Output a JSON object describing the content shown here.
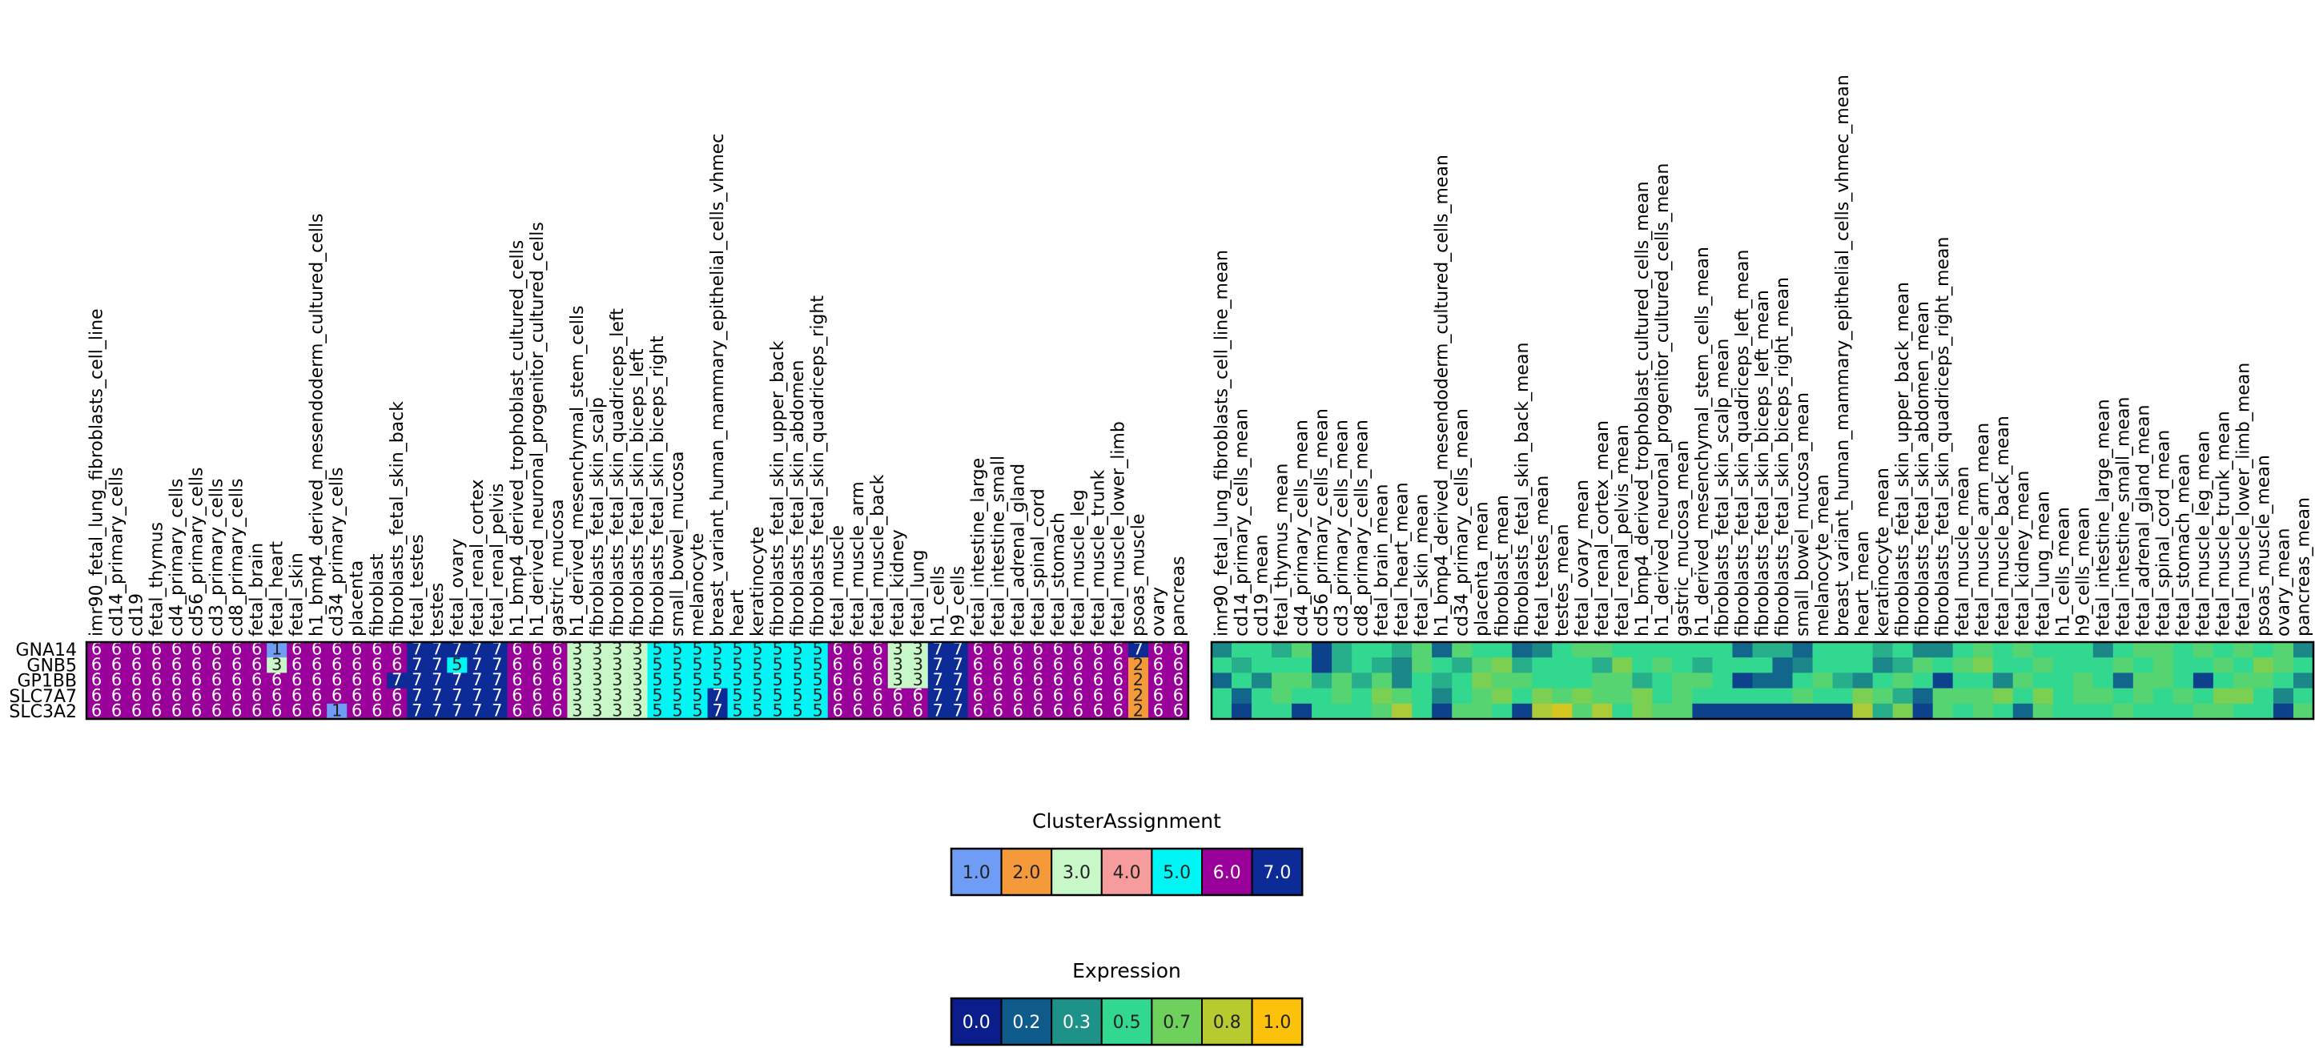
{
  "chart_data": [
    {
      "type": "heatmap",
      "name": "cluster-heatmap",
      "rows": [
        "GNA14",
        "GNB5",
        "GP1BB",
        "SLC7A7",
        "SLC3A2"
      ],
      "columns": [
        "imr90_fetal_lung_fibroblasts_cell_line",
        "cd14_primary_cells",
        "cd19",
        "fetal_thymus",
        "cd4_primary_cells",
        "cd56_primary_cells",
        "cd3_primary_cells",
        "cd8_primary_cells",
        "fetal_brain",
        "fetal_heart",
        "fetal_skin",
        "h1_bmp4_derived_mesendoderm_cultured_cells",
        "cd34_primary_cells",
        "placenta",
        "fibroblast",
        "fibroblasts_fetal_skin_back",
        "fetal_testes",
        "testes",
        "fetal_ovary",
        "fetal_renal_cortex",
        "fetal_renal_pelvis",
        "h1_bmp4_derived_trophoblast_cultured_cells",
        "h1_derived_neuronal_progenitor_cultured_cells",
        "gastric_mucosa",
        "h1_derived_mesenchymal_stem_cells",
        "fibroblasts_fetal_skin_scalp",
        "fibroblasts_fetal_skin_quadriceps_left",
        "fibroblasts_fetal_skin_biceps_left",
        "fibroblasts_fetal_skin_biceps_right",
        "small_bowel_mucosa",
        "melanocyte",
        "breast_variant_human_mammary_epithelial_cells_vhmec",
        "heart",
        "keratinocyte",
        "fibroblasts_fetal_skin_upper_back",
        "fibroblasts_fetal_skin_abdomen",
        "fibroblasts_fetal_skin_quadriceps_right",
        "fetal_muscle",
        "fetal_muscle_arm",
        "fetal_muscle_back",
        "fetal_kidney",
        "fetal_lung",
        "h1_cells",
        "h9_cells",
        "fetal_intestine_large",
        "fetal_intestine_small",
        "fetal_adrenal_gland",
        "fetal_spinal_cord",
        "fetal_stomach",
        "fetal_muscle_leg",
        "fetal_muscle_trunk",
        "fetal_muscle_lower_limb",
        "psoas_muscle",
        "ovary",
        "pancreas"
      ],
      "values": [
        [
          6,
          6,
          6,
          6,
          6,
          6,
          6,
          6,
          6,
          1,
          6,
          6,
          6,
          6,
          6,
          6,
          7,
          7,
          7,
          7,
          7,
          6,
          6,
          6,
          3,
          3,
          3,
          3,
          5,
          5,
          5,
          5,
          5,
          5,
          5,
          5,
          5,
          6,
          6,
          6,
          3,
          3,
          7,
          7,
          6,
          6,
          6,
          6,
          6,
          6,
          6,
          6,
          7,
          6,
          6
        ],
        [
          6,
          6,
          6,
          6,
          6,
          6,
          6,
          6,
          6,
          3,
          6,
          6,
          6,
          6,
          6,
          6,
          7,
          7,
          5,
          7,
          7,
          6,
          6,
          6,
          3,
          3,
          3,
          3,
          5,
          5,
          5,
          5,
          5,
          5,
          5,
          5,
          5,
          6,
          6,
          6,
          3,
          3,
          7,
          7,
          6,
          6,
          6,
          6,
          6,
          6,
          6,
          6,
          2,
          6,
          6
        ],
        [
          6,
          6,
          6,
          6,
          6,
          6,
          6,
          6,
          6,
          6,
          6,
          6,
          6,
          6,
          6,
          7,
          7,
          7,
          7,
          7,
          7,
          6,
          6,
          6,
          3,
          3,
          3,
          3,
          5,
          5,
          5,
          5,
          5,
          5,
          5,
          5,
          5,
          6,
          6,
          6,
          3,
          3,
          7,
          7,
          6,
          6,
          6,
          6,
          6,
          6,
          6,
          6,
          2,
          6,
          6
        ],
        [
          6,
          6,
          6,
          6,
          6,
          6,
          6,
          6,
          6,
          6,
          6,
          6,
          6,
          6,
          6,
          6,
          7,
          7,
          7,
          7,
          7,
          6,
          6,
          6,
          3,
          3,
          3,
          3,
          5,
          5,
          5,
          7,
          5,
          5,
          5,
          5,
          5,
          6,
          6,
          6,
          6,
          6,
          7,
          7,
          6,
          6,
          6,
          6,
          6,
          6,
          6,
          6,
          2,
          6,
          6
        ],
        [
          6,
          6,
          6,
          6,
          6,
          6,
          6,
          6,
          6,
          6,
          6,
          6,
          1,
          6,
          6,
          6,
          7,
          7,
          7,
          7,
          7,
          6,
          6,
          6,
          3,
          3,
          3,
          3,
          5,
          5,
          5,
          7,
          5,
          5,
          5,
          5,
          5,
          6,
          6,
          6,
          6,
          6,
          7,
          7,
          6,
          6,
          6,
          6,
          6,
          6,
          6,
          6,
          2,
          6,
          6
        ]
      ],
      "cluster_colors": {
        "1": "#6f9cf5",
        "2": "#f59a3b",
        "3": "#c8f7c8",
        "4": "#f79c9c",
        "5": "#00f5f5",
        "6": "#990099",
        "7": "#0d2b96"
      }
    },
    {
      "type": "heatmap",
      "name": "expression-heatmap",
      "rows": [
        "GNA14",
        "GNB5",
        "GP1BB",
        "SLC7A7",
        "SLC3A2"
      ],
      "columns": [
        "imr90_fetal_lung_fibroblasts_cell_line_mean",
        "cd14_primary_cells_mean",
        "cd19_mean",
        "fetal_thymus_mean",
        "cd4_primary_cells_mean",
        "cd56_primary_cells_mean",
        "cd3_primary_cells_mean",
        "cd8_primary_cells_mean",
        "fetal_brain_mean",
        "fetal_heart_mean",
        "fetal_skin_mean",
        "h1_bmp4_derived_mesendoderm_cultured_cells_mean",
        "cd34_primary_cells_mean",
        "placenta_mean",
        "fibroblast_mean",
        "fibroblasts_fetal_skin_back_mean",
        "fetal_testes_mean",
        "testes_mean",
        "fetal_ovary_mean",
        "fetal_renal_cortex_mean",
        "fetal_renal_pelvis_mean",
        "h1_bmp4_derived_trophoblast_cultured_cells_mean",
        "h1_derived_neuronal_progenitor_cultured_cells_mean",
        "gastric_mucosa_mean",
        "h1_derived_mesenchymal_stem_cells_mean",
        "fibroblasts_fetal_skin_scalp_mean",
        "fibroblasts_fetal_skin_quadriceps_left_mean",
        "fibroblasts_fetal_skin_biceps_left_mean",
        "fibroblasts_fetal_skin_biceps_right_mean",
        "small_bowel_mucosa_mean",
        "melanocyte_mean",
        "breast_variant_human_mammary_epithelial_cells_vhmec_mean",
        "heart_mean",
        "keratinocyte_mean",
        "fibroblasts_fetal_skin_upper_back_mean",
        "fibroblasts_fetal_skin_abdomen_mean",
        "fibroblasts_fetal_skin_quadriceps_right_mean",
        "fetal_muscle_mean",
        "fetal_muscle_arm_mean",
        "fetal_muscle_back_mean",
        "fetal_kidney_mean",
        "fetal_lung_mean",
        "h1_cells_mean",
        "h9_cells_mean",
        "fetal_intestine_large_mean",
        "fetal_intestine_small_mean",
        "fetal_adrenal_gland_mean",
        "fetal_spinal_cord_mean",
        "fetal_stomach_mean",
        "fetal_muscle_leg_mean",
        "fetal_muscle_trunk_mean",
        "fetal_muscle_lower_limb_mean",
        "psoas_muscle_mean",
        "ovary_mean",
        "pancreas_mean"
      ],
      "values": [
        [
          0.3,
          0.5,
          0.5,
          0.4,
          0.6,
          0.1,
          0.4,
          0.5,
          0.5,
          0.4,
          0.6,
          0.2,
          0.6,
          0.5,
          0.5,
          0.2,
          0.3,
          0.5,
          0.6,
          0.6,
          0.5,
          0.5,
          0.5,
          0.5,
          0.5,
          0.5,
          0.2,
          0.4,
          0.4,
          0.2,
          0.5,
          0.5,
          0.5,
          0.4,
          0.5,
          0.3,
          0.3,
          0.5,
          0.6,
          0.5,
          0.6,
          0.5,
          0.5,
          0.5,
          0.3,
          0.5,
          0.6,
          0.6,
          0.5,
          0.6,
          0.5,
          0.6,
          0.5,
          0.6,
          0.3
        ],
        [
          0.5,
          0.4,
          0.5,
          0.5,
          0.5,
          0.1,
          0.4,
          0.5,
          0.4,
          0.3,
          0.6,
          0.5,
          0.4,
          0.6,
          0.7,
          0.4,
          0.5,
          0.5,
          0.5,
          0.4,
          0.7,
          0.5,
          0.6,
          0.5,
          0.4,
          0.5,
          0.5,
          0.5,
          0.2,
          0.3,
          0.5,
          0.5,
          0.5,
          0.3,
          0.4,
          0.6,
          0.5,
          0.6,
          0.7,
          0.5,
          0.5,
          0.6,
          0.5,
          0.5,
          0.5,
          0.6,
          0.5,
          0.6,
          0.5,
          0.5,
          0.6,
          0.5,
          0.7,
          0.6,
          0.5
        ],
        [
          0.2,
          0.5,
          0.3,
          0.6,
          0.6,
          0.4,
          0.6,
          0.4,
          0.6,
          0.3,
          0.5,
          0.4,
          0.5,
          0.7,
          0.6,
          0.6,
          0.5,
          0.5,
          0.5,
          0.6,
          0.6,
          0.4,
          0.5,
          0.6,
          0.6,
          0.5,
          0.1,
          0.2,
          0.2,
          0.5,
          0.6,
          0.4,
          0.3,
          0.5,
          0.6,
          0.5,
          0.1,
          0.5,
          0.5,
          0.3,
          0.6,
          0.5,
          0.5,
          0.6,
          0.5,
          0.2,
          0.6,
          0.6,
          0.5,
          0.1,
          0.5,
          0.6,
          0.6,
          0.5,
          0.3
        ],
        [
          0.5,
          0.2,
          0.5,
          0.6,
          0.5,
          0.5,
          0.6,
          0.5,
          0.7,
          0.6,
          0.5,
          0.3,
          0.5,
          0.6,
          0.7,
          0.5,
          0.7,
          0.6,
          0.7,
          0.6,
          0.6,
          0.7,
          0.5,
          0.6,
          0.5,
          0.5,
          0.5,
          0.5,
          0.5,
          0.6,
          0.5,
          0.5,
          0.7,
          0.6,
          0.4,
          0.2,
          0.6,
          0.6,
          0.6,
          0.7,
          0.5,
          0.7,
          0.5,
          0.6,
          0.6,
          0.5,
          0.6,
          0.5,
          0.6,
          0.5,
          0.7,
          0.7,
          0.5,
          0.3,
          0.5
        ],
        [
          0.5,
          0.1,
          0.5,
          0.5,
          0.1,
          0.5,
          0.5,
          0.5,
          0.6,
          0.8,
          0.5,
          0.1,
          0.6,
          0.6,
          0.5,
          0.1,
          0.8,
          0.9,
          0.6,
          0.8,
          0.5,
          0.7,
          0.6,
          0.6,
          0.1,
          0.1,
          0.1,
          0.1,
          0.1,
          0.1,
          0.1,
          0.1,
          0.8,
          0.4,
          0.7,
          0.1,
          0.6,
          0.5,
          0.6,
          0.5,
          0.2,
          0.6,
          0.5,
          0.5,
          0.5,
          0.6,
          0.5,
          0.5,
          0.5,
          0.6,
          0.6,
          0.5,
          0.5,
          0.1,
          0.6
        ]
      ]
    }
  ],
  "legends": {
    "cluster": {
      "title": "ClusterAssignment",
      "items": [
        {
          "label": "1.0",
          "color": "#6f9cf5",
          "text_color": "#222222"
        },
        {
          "label": "2.0",
          "color": "#f59a3b",
          "text_color": "#222222"
        },
        {
          "label": "3.0",
          "color": "#c8f7c8",
          "text_color": "#222222"
        },
        {
          "label": "4.0",
          "color": "#f79c9c",
          "text_color": "#222222"
        },
        {
          "label": "5.0",
          "color": "#00f5f5",
          "text_color": "#222222"
        },
        {
          "label": "6.0",
          "color": "#990099",
          "text_color": "#ffffff"
        },
        {
          "label": "7.0",
          "color": "#0d2b96",
          "text_color": "#ffffff"
        }
      ]
    },
    "expression": {
      "title": "Expression",
      "items": [
        {
          "label": "0.0",
          "color": "#0a1d8a",
          "text_color": "#ffffff"
        },
        {
          "label": "0.2",
          "color": "#0f5b8c",
          "text_color": "#ffffff"
        },
        {
          "label": "0.3",
          "color": "#1e9188",
          "text_color": "#ffffff"
        },
        {
          "label": "0.5",
          "color": "#33d890",
          "text_color": "#222222"
        },
        {
          "label": "0.7",
          "color": "#6dd15c",
          "text_color": "#222222"
        },
        {
          "label": "0.8",
          "color": "#b9c930",
          "text_color": "#222222"
        },
        {
          "label": "1.0",
          "color": "#fcc10a",
          "text_color": "#222222"
        }
      ]
    }
  }
}
